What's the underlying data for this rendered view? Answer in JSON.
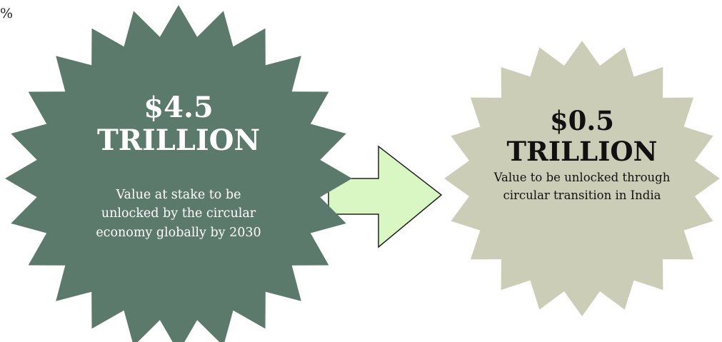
{
  "corner_text": "%",
  "left_callout": {
    "amount": "$4.5",
    "unit": "TRILLION",
    "description": "Value at stake to be unlocked by the circular economy globally by 2030"
  },
  "right_callout": {
    "amount": "$0.5",
    "unit": "TRILLION",
    "description": "Value to be unlocked through circular transition in India"
  },
  "colors": {
    "left_starburst": "#5b7a6c",
    "right_starburst": "#cbcdb6",
    "arrow_fill": "#d8f7c2",
    "arrow_stroke": "#222222"
  }
}
